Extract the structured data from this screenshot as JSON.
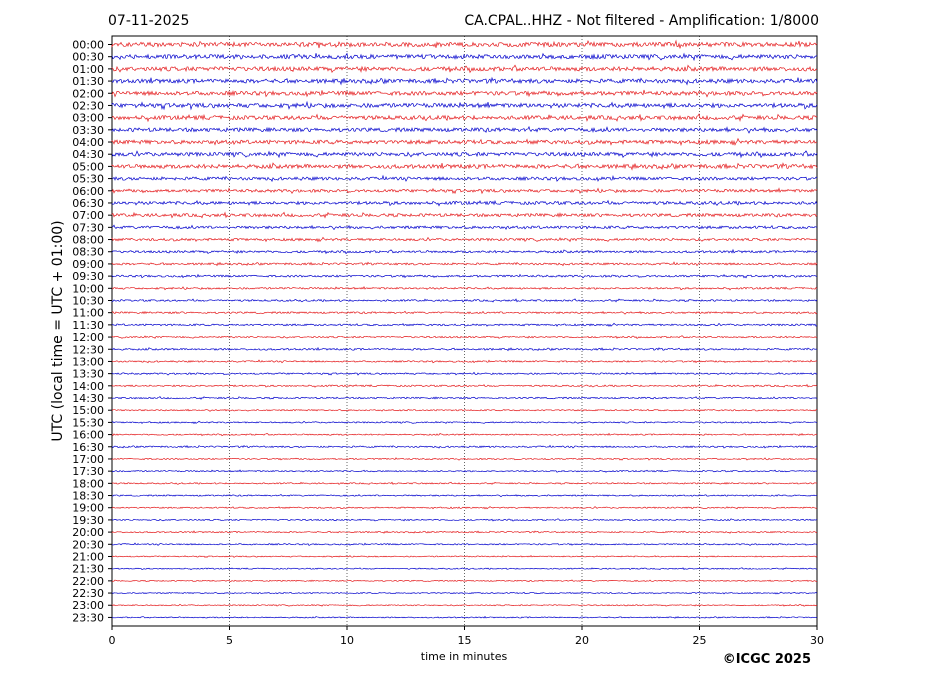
{
  "chart_data": {
    "type": "line",
    "date": "07-11-2025",
    "title": "CA.CPAL..HHZ - Not filtered - Amplification: 1/8000",
    "xlabel": "time in minutes",
    "ylabel": "UTC (local time = UTC + 01:00)",
    "xlim": [
      0,
      30
    ],
    "x_ticks": [
      "0",
      "5",
      "10",
      "15",
      "20",
      "25",
      "30"
    ],
    "x_tick_values": [
      0,
      5,
      10,
      15,
      20,
      25,
      30
    ],
    "vertical_grid": true,
    "row_labels": [
      "00:00",
      "00:30",
      "01:00",
      "01:30",
      "02:00",
      "02:30",
      "03:00",
      "03:30",
      "04:00",
      "04:30",
      "05:00",
      "05:30",
      "06:00",
      "06:30",
      "07:00",
      "07:30",
      "08:00",
      "08:30",
      "09:00",
      "09:30",
      "10:00",
      "10:30",
      "11:00",
      "11:30",
      "12:00",
      "12:30",
      "13:00",
      "13:30",
      "14:00",
      "14:30",
      "15:00",
      "15:30",
      "16:00",
      "16:30",
      "17:00",
      "17:30",
      "18:00",
      "18:30",
      "19:00",
      "19:30",
      "20:00",
      "20:30",
      "21:00",
      "21:30",
      "22:00",
      "22:30",
      "23:00",
      "23:30"
    ],
    "trace_colors": [
      "#e41a1c",
      "#0000cc"
    ],
    "relative_amplitude": [
      1.0,
      0.95,
      0.95,
      0.9,
      0.9,
      0.95,
      0.9,
      0.85,
      0.85,
      0.85,
      0.9,
      0.7,
      0.65,
      0.7,
      0.7,
      0.6,
      0.55,
      0.5,
      0.45,
      0.45,
      0.4,
      0.4,
      0.4,
      0.4,
      0.35,
      0.4,
      0.35,
      0.35,
      0.35,
      0.35,
      0.3,
      0.3,
      0.3,
      0.35,
      0.3,
      0.3,
      0.3,
      0.3,
      0.3,
      0.3,
      0.3,
      0.3,
      0.25,
      0.25,
      0.25,
      0.25,
      0.25,
      0.25
    ],
    "copyright": "©ICGC 2025"
  }
}
